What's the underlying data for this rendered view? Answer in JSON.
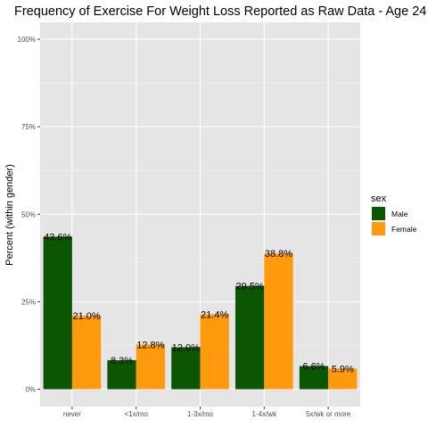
{
  "chart_data": {
    "type": "bar",
    "title": "Frequency of Exercise For Weight Loss Reported as Raw Data - Age 24",
    "xlabel": "",
    "ylabel": "Percent (within gender)",
    "categories": [
      "never",
      "<1x/mo",
      "1-3x/mo",
      "1-4x/wk",
      "5x/wk or more"
    ],
    "series": [
      {
        "name": "Male",
        "color": "#0b5503",
        "values": [
          43.6,
          8.3,
          12.0,
          29.5,
          6.6
        ],
        "labels": [
          "43.6%",
          "8.3%",
          "12.0%",
          "29.5%",
          "6.6%"
        ]
      },
      {
        "name": "Female",
        "color": "#ff990e",
        "values": [
          21.0,
          12.8,
          21.4,
          38.8,
          5.9
        ],
        "labels": [
          "21.0%",
          "12.8%",
          "21.4%",
          "38.8%",
          "5.9%"
        ]
      }
    ],
    "ylim": [
      0,
      100
    ],
    "y_ticks": [
      0,
      25,
      50,
      75,
      100
    ],
    "y_tick_labels": [
      "0%",
      "25%",
      "50%",
      "75%",
      "100%"
    ],
    "legend": {
      "title": "sex",
      "position": "right"
    },
    "grid": true,
    "background": "#e5e5e5"
  }
}
